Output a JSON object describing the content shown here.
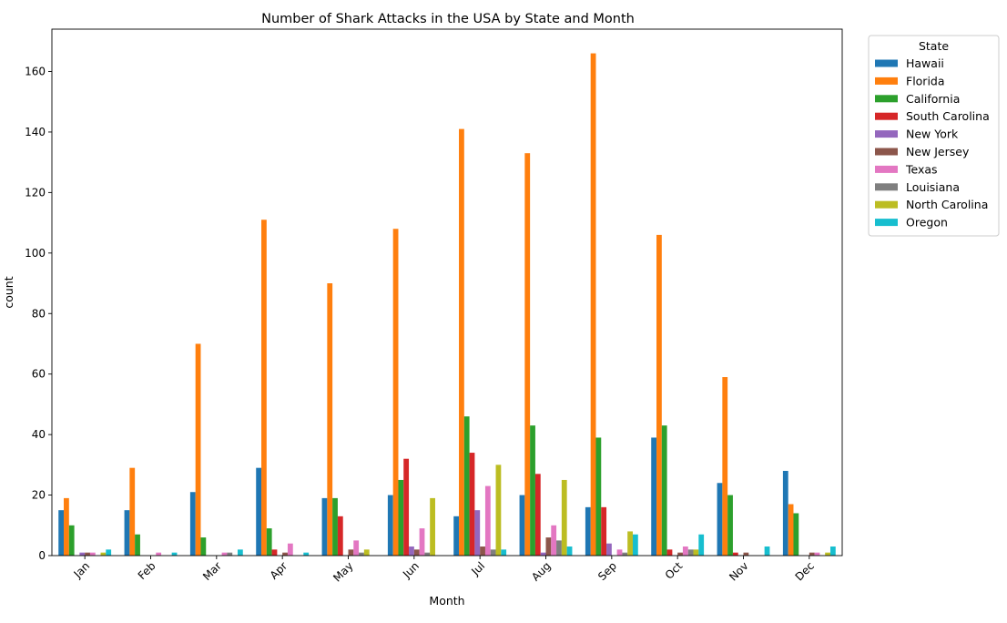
{
  "chart_data": {
    "type": "bar",
    "title": "Number of Shark Attacks in the USA by State and Month",
    "xlabel": "Month",
    "ylabel": "count",
    "ylim": [
      0,
      174
    ],
    "yticks": [
      0,
      20,
      40,
      60,
      80,
      100,
      120,
      140,
      160
    ],
    "grid": false,
    "legend": {
      "title": "State",
      "position": "upper-right-outside"
    },
    "categories": [
      "Jan",
      "Feb",
      "Mar",
      "Apr",
      "May",
      "Jun",
      "Jul",
      "Aug",
      "Sep",
      "Oct",
      "Nov",
      "Dec"
    ],
    "series": [
      {
        "name": "Hawaii",
        "color": "#1f77b4",
        "values": [
          15,
          15,
          21,
          29,
          19,
          20,
          13,
          20,
          16,
          39,
          24,
          28
        ]
      },
      {
        "name": "Florida",
        "color": "#ff7f0e",
        "values": [
          19,
          29,
          70,
          111,
          90,
          108,
          141,
          133,
          166,
          106,
          59,
          17
        ]
      },
      {
        "name": "California",
        "color": "#2ca02c",
        "values": [
          10,
          7,
          6,
          9,
          19,
          25,
          46,
          43,
          39,
          43,
          20,
          14
        ]
      },
      {
        "name": "South Carolina",
        "color": "#d62728",
        "values": [
          0,
          0,
          0,
          2,
          13,
          32,
          34,
          27,
          16,
          2,
          1,
          0
        ]
      },
      {
        "name": "New York",
        "color": "#9467bd",
        "values": [
          1,
          0,
          0,
          0,
          0,
          3,
          15,
          1,
          4,
          0,
          0,
          0
        ]
      },
      {
        "name": "New Jersey",
        "color": "#8c564b",
        "values": [
          1,
          0,
          0,
          1,
          2,
          2,
          3,
          6,
          0,
          1,
          1,
          1
        ]
      },
      {
        "name": "Texas",
        "color": "#e377c2",
        "values": [
          1,
          1,
          1,
          4,
          5,
          9,
          23,
          10,
          2,
          3,
          0,
          1
        ]
      },
      {
        "name": "Louisiana",
        "color": "#7f7f7f",
        "values": [
          0,
          0,
          1,
          0,
          1,
          1,
          2,
          5,
          1,
          2,
          0,
          0
        ]
      },
      {
        "name": "North Carolina",
        "color": "#bcbd22",
        "values": [
          1,
          0,
          0,
          0,
          2,
          19,
          30,
          25,
          8,
          2,
          0,
          1
        ]
      },
      {
        "name": "Oregon",
        "color": "#17becf",
        "values": [
          2,
          1,
          2,
          1,
          0,
          0,
          2,
          3,
          7,
          7,
          3,
          3
        ]
      }
    ]
  }
}
